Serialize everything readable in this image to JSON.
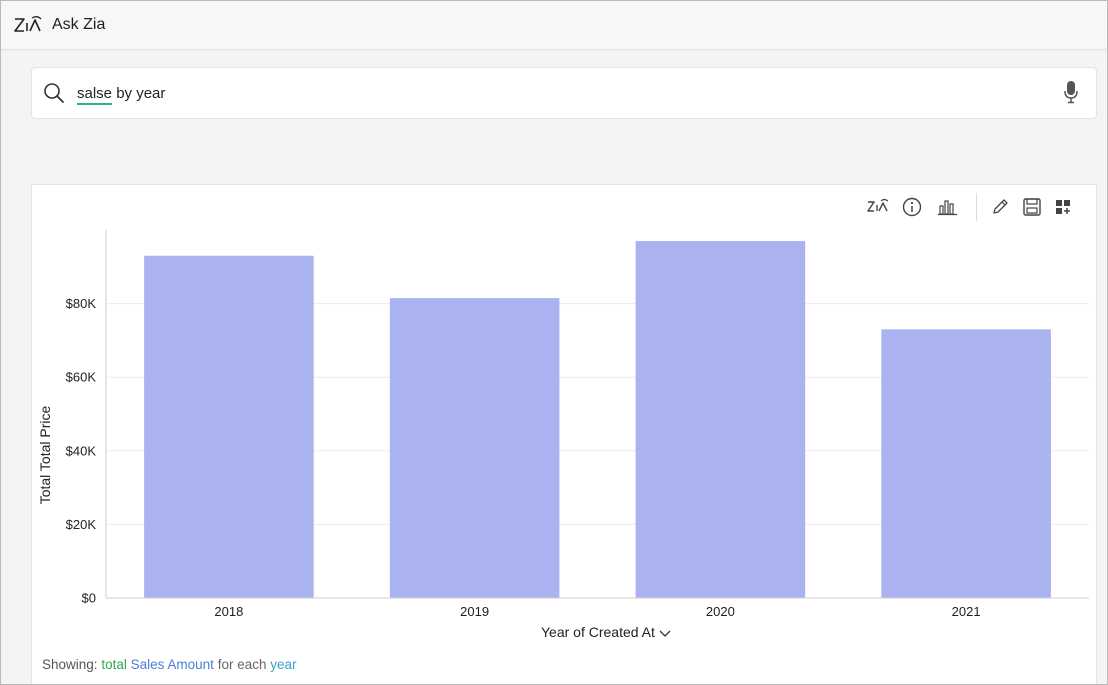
{
  "app": {
    "title": "Ask Zia"
  },
  "search": {
    "query_misspelled": "salse",
    "query_rest": " by year"
  },
  "toolbar": {
    "icons": [
      "zia-icon",
      "info-icon",
      "chart-type-icon",
      "edit-icon",
      "save-icon",
      "add-to-dashboard-icon"
    ]
  },
  "chart_data": {
    "type": "bar",
    "categories": [
      "2018",
      "2019",
      "2020",
      "2021"
    ],
    "values": [
      93000,
      81500,
      97000,
      73000
    ],
    "ylabel": "Total Total Price",
    "xlabel": "Year of Created At",
    "ylim": [
      0,
      100000
    ],
    "y_ticks": [
      0,
      20000,
      40000,
      60000,
      80000
    ],
    "y_tick_labels": [
      "$0",
      "$20K",
      "$40K",
      "$60K",
      "$80K"
    ],
    "grid": true,
    "bar_color": "#aab3ef"
  },
  "footer": {
    "showing_label": "Showing:",
    "total": "total",
    "measure": "Sales Amount",
    "for_each": "for each",
    "dimension": "year"
  }
}
